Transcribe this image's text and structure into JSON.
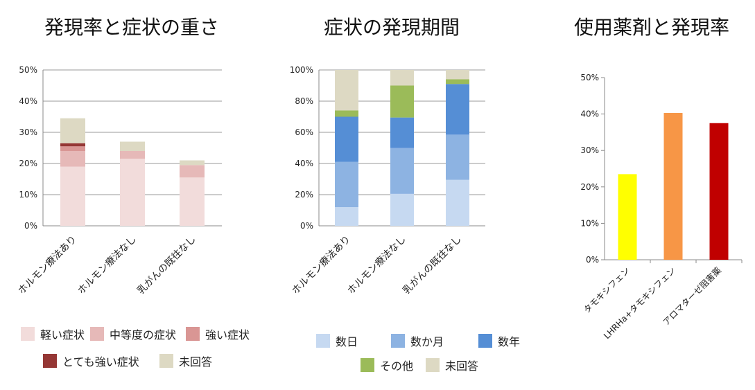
{
  "chart_data": [
    {
      "type": "bar",
      "stacked": true,
      "title": "発現率と症状の重さ",
      "categories": [
        "ホルモン療法あり",
        "ホルモン療法なし",
        "乳がんの既往なし"
      ],
      "ylim": [
        0,
        50
      ],
      "yticks": [
        "0%",
        "10%",
        "20%",
        "30%",
        "40%",
        "50%"
      ],
      "grid": true,
      "legend_position": "bottom",
      "series": [
        {
          "name": "軽い症状",
          "color": "#f2dcdb",
          "values": [
            19,
            21.5,
            15.5
          ]
        },
        {
          "name": "中等度の症状",
          "color": "#e6b9b8",
          "values": [
            5,
            2.5,
            4
          ]
        },
        {
          "name": "強い症状",
          "color": "#d99694",
          "values": [
            1.5,
            0,
            0
          ]
        },
        {
          "name": "とても強い症状",
          "color": "#953735",
          "values": [
            1,
            0,
            0
          ]
        },
        {
          "name": "未回答",
          "color": "#ddd9c3",
          "values": [
            8,
            3,
            1.5
          ]
        }
      ]
    },
    {
      "type": "bar",
      "stacked": true,
      "title": "症状の発現期間",
      "categories": [
        "ホルモン療法あり",
        "ホルモン療法なし",
        "乳がんの既往なし"
      ],
      "ylim": [
        0,
        100
      ],
      "yticks": [
        "0%",
        "20%",
        "40%",
        "60%",
        "80%",
        "100%"
      ],
      "grid": true,
      "legend_position": "bottom",
      "series": [
        {
          "name": "数日",
          "color": "#c6d9f1",
          "values": [
            12,
            20.5,
            29.5
          ]
        },
        {
          "name": "数か月",
          "color": "#8db3e2",
          "values": [
            29,
            29.5,
            29
          ]
        },
        {
          "name": "数年",
          "color": "#558ed5",
          "values": [
            29,
            19.5,
            32.5
          ]
        },
        {
          "name": "その他",
          "color": "#9bbb59",
          "values": [
            4,
            20.5,
            3
          ]
        },
        {
          "name": "未回答",
          "color": "#ddd9c3",
          "values": [
            26,
            10,
            6
          ]
        }
      ]
    },
    {
      "type": "bar",
      "title": "使用薬剤と発現率",
      "categories": [
        "タモキシフェン",
        "LHRHa+タモキシフェン",
        "アロマターゼ阻害薬"
      ],
      "ylim": [
        0,
        50
      ],
      "yticks": [
        "0%",
        "10%",
        "20%",
        "30%",
        "40%",
        "50%"
      ],
      "grid": false,
      "colors": [
        "#ffff00",
        "#f79646",
        "#c00000"
      ],
      "values": [
        23.5,
        40.3,
        37.5
      ]
    }
  ]
}
